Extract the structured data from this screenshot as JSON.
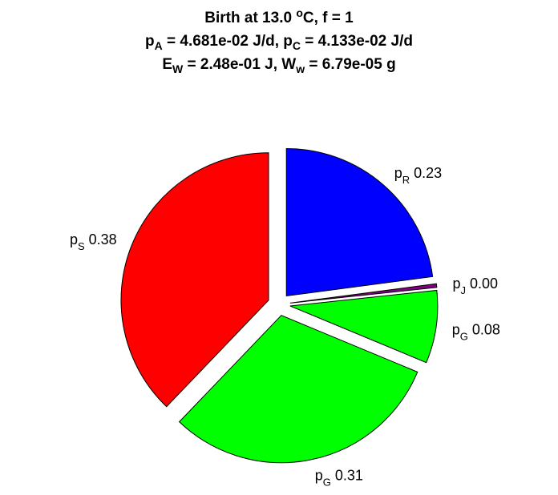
{
  "title": {
    "line1": "Birth at 13.0 °C, f = 1",
    "line1_prefix": "Birth at 13.0 ",
    "line1_sup": "o",
    "line1_suffix": "C, f = 1",
    "line2_a": "p",
    "line2_a_sub": "A",
    "line2_b": " = 4.681e-02 J/d, p",
    "line2_b_sub": "C",
    "line2_c": " = 4.133e-02 J/d",
    "line3_a": "E",
    "line3_a_sub": "W",
    "line3_b": " = 2.48e-01 J, W",
    "line3_b_sub": "w",
    "line3_c": " = 6.79e-05 g"
  },
  "chart_data": {
    "type": "pie",
    "slices": [
      {
        "symbol": "p",
        "sub": "R",
        "value": 0.23,
        "value_label": "0.23",
        "color": "#0000ff"
      },
      {
        "symbol": "p",
        "sub": "J",
        "value": 0.004,
        "value_label": "0.00",
        "color": "#800080"
      },
      {
        "symbol": "p",
        "sub": "G",
        "value": 0.08,
        "value_label": "0.08",
        "color": "#00ff00"
      },
      {
        "symbol": "p",
        "sub": "G",
        "value": 0.31,
        "value_label": "0.31",
        "color": "#00ff00"
      },
      {
        "symbol": "p",
        "sub": "S",
        "value": 0.38,
        "value_label": "0.38",
        "color": "#ff0000"
      }
    ],
    "exploded": [
      true,
      true,
      true,
      true,
      true
    ]
  }
}
